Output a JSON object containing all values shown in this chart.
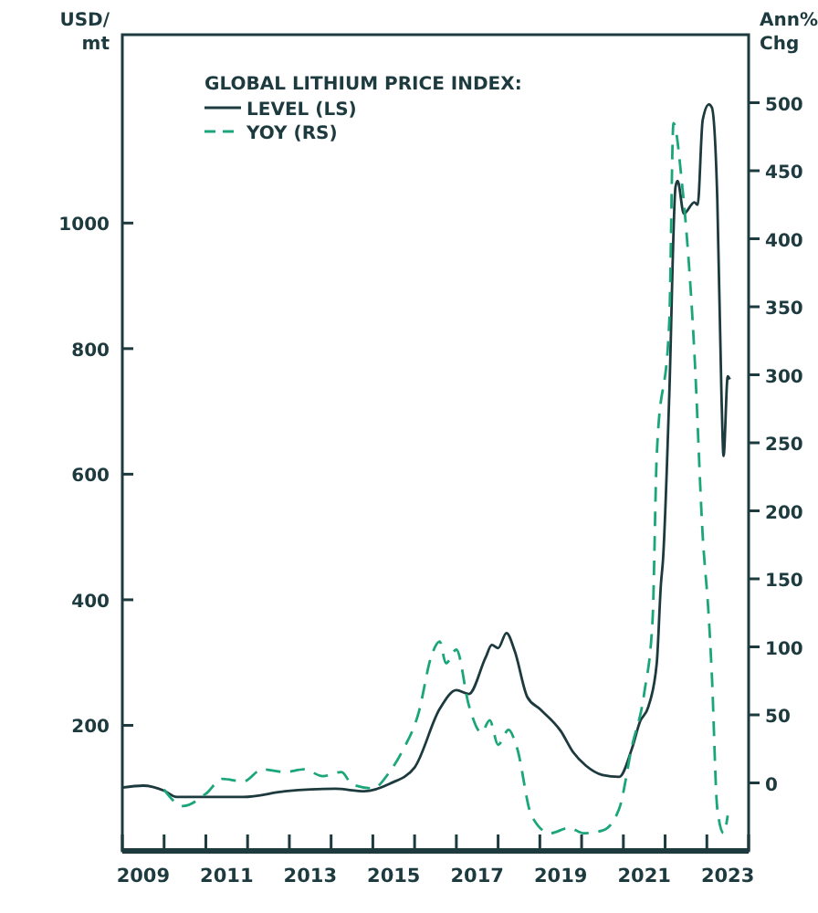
{
  "chart_data": {
    "type": "line",
    "ylabel": "USD/\nmt",
    "y2label": "Ann%\nChg",
    "legend_title": "GLOBAL LITHIUM PRICE INDEX:",
    "legend": "top left",
    "grid": false,
    "xlim": [
      2009,
      2024
    ],
    "ylim": [
      0,
      1300
    ],
    "y2lim": [
      -50,
      550
    ],
    "xticks": [
      {
        "value": 2009,
        "label": null
      },
      {
        "value": 2010,
        "label": null
      },
      {
        "value": 2011,
        "label": null
      },
      {
        "value": 2012,
        "label": null
      },
      {
        "value": 2013,
        "label": null
      },
      {
        "value": 2014,
        "label": null
      },
      {
        "value": 2015,
        "label": null
      },
      {
        "value": 2016,
        "label": null
      },
      {
        "value": 2017,
        "label": null
      },
      {
        "value": 2018,
        "label": null
      },
      {
        "value": 2019,
        "label": null
      },
      {
        "value": 2020,
        "label": null
      },
      {
        "value": 2021,
        "label": null
      },
      {
        "value": 2022,
        "label": null
      },
      {
        "value": 2023,
        "label": null
      },
      {
        "value": 2024,
        "label": null
      },
      {
        "value": 2009.5,
        "label": "2009"
      },
      {
        "value": 2011.5,
        "label": "2011"
      },
      {
        "value": 2013.5,
        "label": "2013"
      },
      {
        "value": 2015.5,
        "label": "2015"
      },
      {
        "value": 2017.5,
        "label": "2017"
      },
      {
        "value": 2019.5,
        "label": "2019"
      },
      {
        "value": 2021.5,
        "label": "2021"
      },
      {
        "value": 2023.5,
        "label": "2023"
      }
    ],
    "yticks": [
      200,
      400,
      600,
      800,
      1000
    ],
    "y2ticks": [
      0,
      50,
      100,
      150,
      200,
      250,
      300,
      350,
      400,
      450,
      500
    ],
    "series": [
      {
        "name": "LEVEL (LS)",
        "color": "#1d3a3f",
        "line_style": "solid",
        "x": [
          2009.0,
          2009.5,
          2010.0,
          2010.3,
          2011.0,
          2011.9,
          2012.9,
          2014.1,
          2014.8,
          2015.4,
          2016.0,
          2016.6,
          2017.0,
          2017.3,
          2017.7,
          2017.85,
          2018.0,
          2018.2,
          2018.4,
          2018.7,
          2019.0,
          2019.5,
          2019.8,
          2020.1,
          2020.5,
          2020.9,
          2021.2,
          2021.4,
          2021.6,
          2021.8,
          2021.9,
          2021.95,
          2022.1,
          2022.25,
          2022.3,
          2022.45,
          2022.7,
          2022.78,
          2022.9,
          2023.05,
          2023.12,
          2023.25,
          2023.35,
          2023.4,
          2023.5,
          2023.55
        ],
        "values": [
          101,
          104,
          96,
          86,
          86,
          86,
          95,
          99,
          95,
          107,
          133,
          226,
          256,
          250,
          308,
          328,
          323,
          347,
          318,
          245,
          226,
          191,
          157,
          136,
          121,
          118,
          162,
          206,
          230,
          299,
          425,
          464,
          726,
          1058,
          1067,
          1015,
          1033,
          1029,
          1164,
          1189,
          1184,
          1038,
          726,
          629,
          756,
          751
        ]
      },
      {
        "name": "YOY (RS)",
        "color": "#1aa67a",
        "axis": "y2",
        "line_style": "dashed",
        "x": [
          2010.0,
          2010.45,
          2011.0,
          2011.4,
          2011.9,
          2012.35,
          2012.9,
          2013.35,
          2013.8,
          2014.25,
          2014.5,
          2015.0,
          2015.4,
          2015.7,
          2016.1,
          2016.4,
          2016.6,
          2016.75,
          2017.0,
          2017.3,
          2017.6,
          2017.8,
          2018.0,
          2018.25,
          2018.45,
          2018.8,
          2019.25,
          2019.7,
          2020.05,
          2020.5,
          2020.9,
          2021.2,
          2021.5,
          2021.7,
          2021.8,
          2022.1,
          2022.2,
          2022.4,
          2022.7,
          2022.9,
          2023.05,
          2023.12,
          2023.25,
          2023.4,
          2023.5
        ],
        "values": [
          -5,
          -17,
          -8,
          3,
          1,
          10,
          8,
          10,
          5,
          8,
          -1,
          -4,
          8,
          23,
          52,
          93,
          104,
          88,
          98,
          57,
          37,
          46,
          28,
          39,
          26,
          -24,
          -37,
          -33,
          -37,
          -35,
          -19,
          26,
          66,
          120,
          241,
          339,
          485,
          442,
          317,
          182,
          120,
          79,
          -19,
          -37,
          -24
        ]
      }
    ]
  }
}
